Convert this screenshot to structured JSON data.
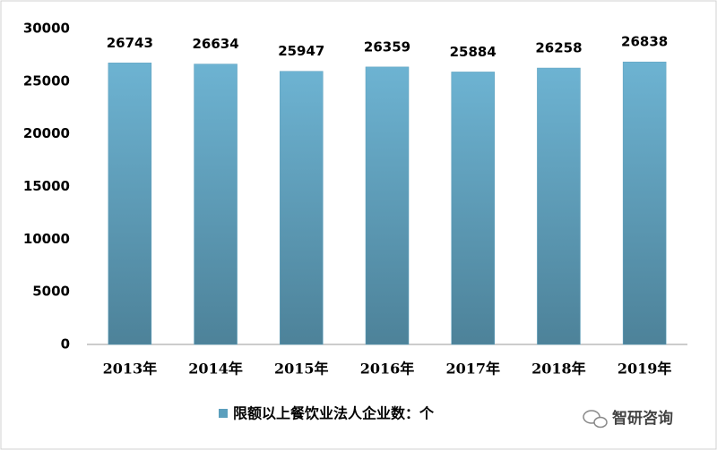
{
  "chart_data": {
    "type": "bar",
    "categories": [
      "2013年",
      "2014年",
      "2015年",
      "2016年",
      "2017年",
      "2018年",
      "2019年"
    ],
    "series": [
      {
        "name": "限额以上餐饮业法人企业数：个",
        "color": "#5b9fbd",
        "values": [
          26743,
          26634,
          25947,
          26359,
          25884,
          26258,
          26838
        ]
      }
    ],
    "ylim": [
      0,
      30000
    ],
    "yticks": [
      0,
      5000,
      10000,
      15000,
      20000,
      25000,
      30000
    ],
    "grid": false,
    "legend": "bottom",
    "watermark": "智研咨询"
  }
}
